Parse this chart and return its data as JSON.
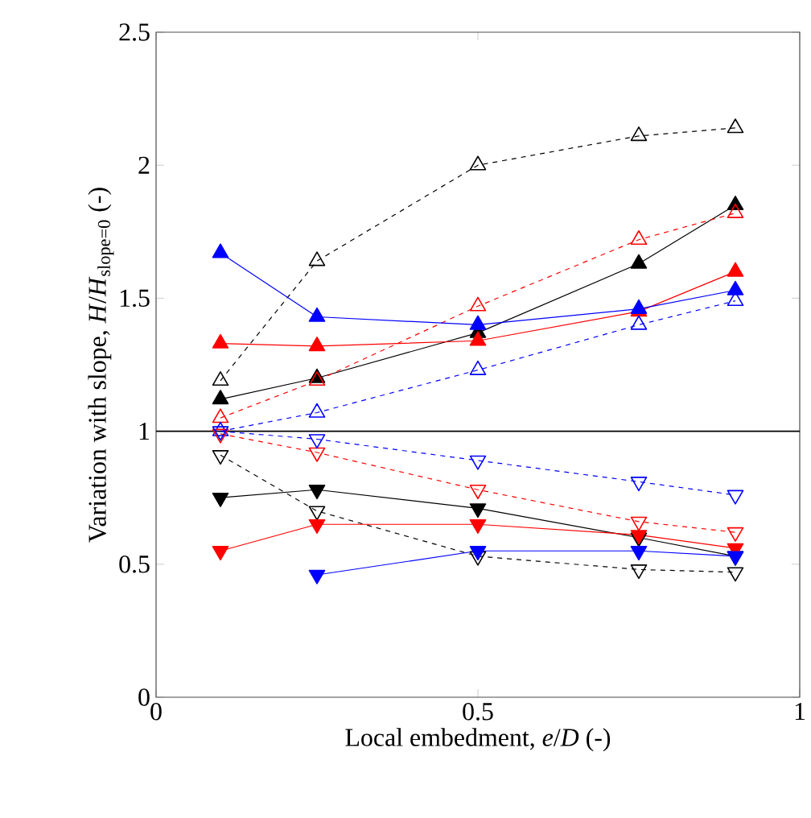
{
  "chart_data": {
    "type": "line",
    "xlabel": "Local embedment, *e*/*D* (-)",
    "ylabel": "Variation with slope, *H*/*H*$_{slope=0}$ (-)",
    "x": [
      0.1,
      0.25,
      0.5,
      0.75,
      0.9
    ],
    "xlim": [
      0,
      1
    ],
    "ylim": [
      0,
      2.5
    ],
    "xticks": [
      0,
      0.5,
      1
    ],
    "yticks": [
      0,
      0.5,
      1,
      1.5,
      2,
      2.5
    ],
    "ref_lines": [
      {
        "axis": "y",
        "value": 1,
        "color": "#000000",
        "line_style": "solid"
      }
    ],
    "series": [
      {
        "color": "#000000",
        "marker": "triangle",
        "line_style": "solid",
        "values": [
          1.12,
          1.2,
          1.37,
          1.63,
          1.85
        ]
      },
      {
        "color": "#000000",
        "marker": "triangle-open",
        "line_style": "dashed",
        "values": [
          1.19,
          1.64,
          2.0,
          2.11,
          2.14
        ]
      },
      {
        "color": "#ff0000",
        "marker": "triangle",
        "line_style": "solid",
        "values": [
          1.33,
          1.32,
          1.34,
          1.45,
          1.6
        ]
      },
      {
        "color": "#ff0000",
        "marker": "triangle-open",
        "line_style": "dashed",
        "values": [
          1.05,
          1.19,
          1.47,
          1.72,
          1.82
        ]
      },
      {
        "color": "#0000ff",
        "marker": "triangle",
        "line_style": "solid",
        "values": [
          1.67,
          1.43,
          1.4,
          1.46,
          1.53
        ]
      },
      {
        "color": "#0000ff",
        "marker": "triangle-open",
        "line_style": "dashed",
        "values": [
          1.0,
          1.07,
          1.23,
          1.4,
          1.49
        ]
      },
      {
        "color": "#000000",
        "marker": "triangle-down",
        "line_style": "solid",
        "values": [
          0.75,
          0.78,
          0.71,
          0.6,
          0.53
        ]
      },
      {
        "color": "#000000",
        "marker": "triangle-down-open",
        "line_style": "dashed",
        "values": [
          0.91,
          0.7,
          0.53,
          0.48,
          0.47
        ]
      },
      {
        "color": "#ff0000",
        "marker": "triangle-down",
        "line_style": "solid",
        "values": [
          0.55,
          0.65,
          0.65,
          0.61,
          0.56
        ]
      },
      {
        "color": "#ff0000",
        "marker": "triangle-down-open",
        "line_style": "dashed",
        "values": [
          0.99,
          0.92,
          0.78,
          0.66,
          0.62
        ]
      },
      {
        "color": "#0000ff",
        "marker": "triangle-down",
        "line_style": "solid",
        "values": [
          null,
          0.46,
          0.55,
          0.55,
          0.53
        ]
      },
      {
        "color": "#0000ff",
        "marker": "triangle-down-open",
        "line_style": "dashed",
        "values": [
          1.0,
          0.97,
          0.89,
          0.81,
          0.76
        ]
      }
    ]
  }
}
